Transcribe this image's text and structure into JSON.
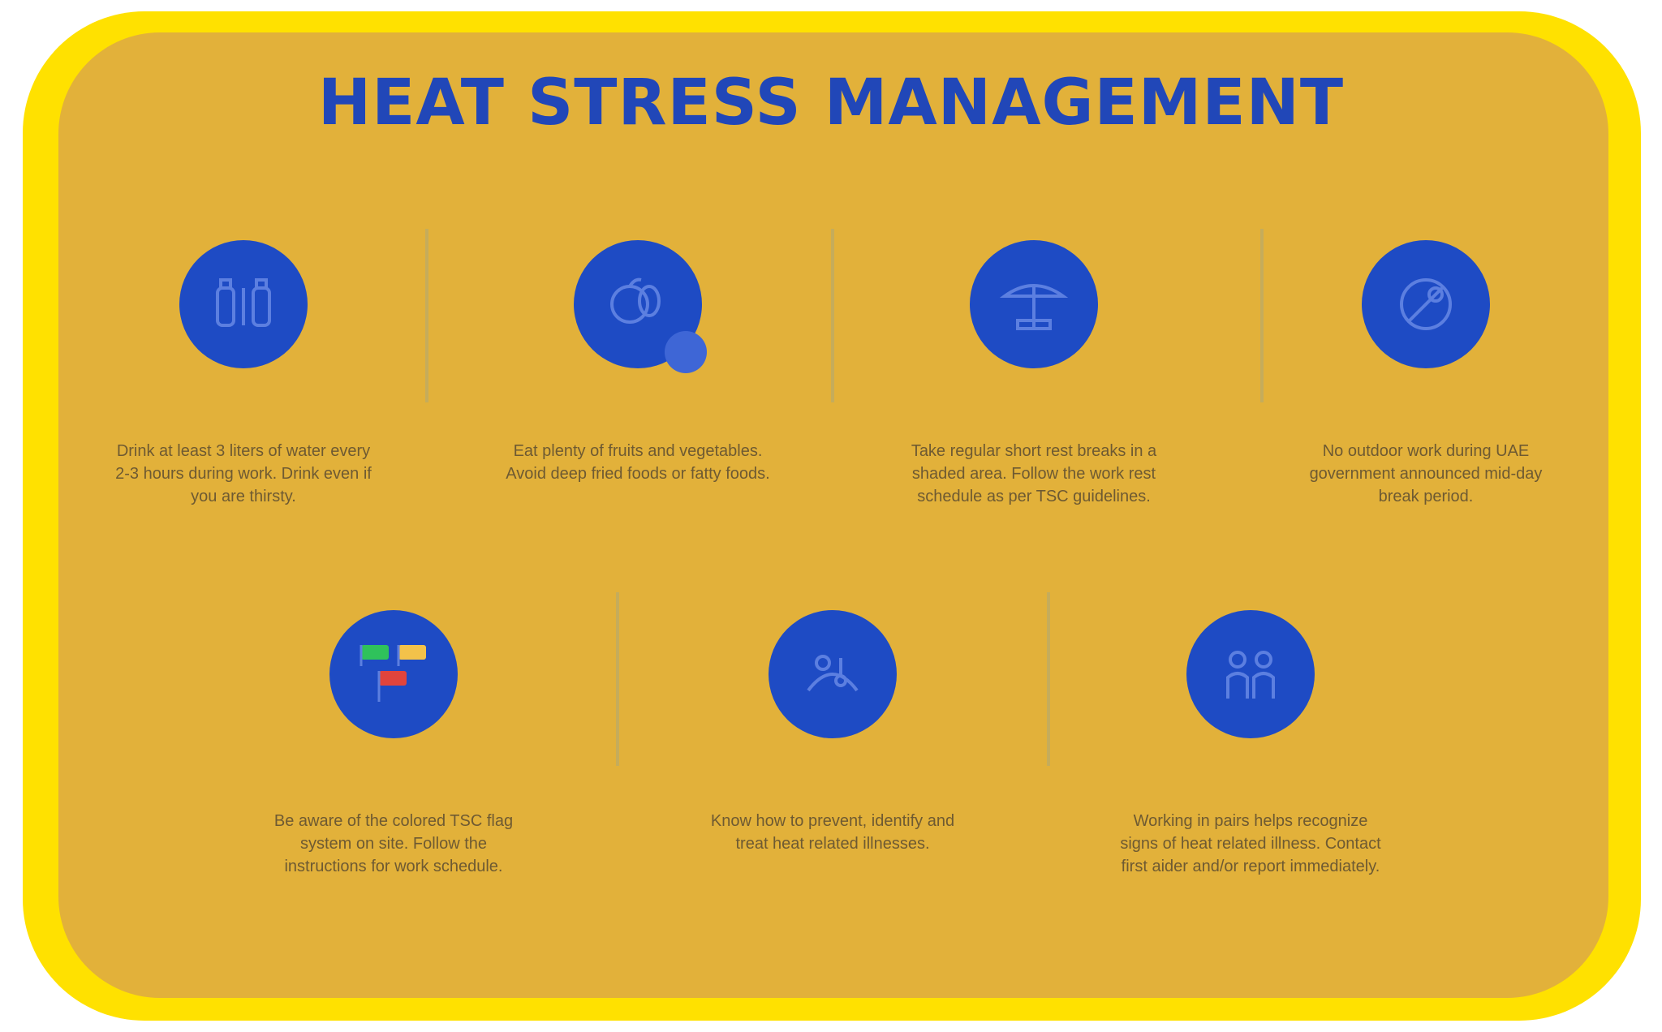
{
  "title": "HEAT STRESS MANAGEMENT",
  "colors": {
    "frame": "#FFE100",
    "panel": "#E2B13A",
    "title": "#2147B8",
    "circle": "#1E4BC4",
    "text": "#6E5A32",
    "divider": "#C5AC5B"
  },
  "row1": [
    {
      "icon": "water-bottle-icon",
      "text": "Drink at least 3 liters of water every 2-3 hours during work. Drink even if you are thirsty."
    },
    {
      "icon": "fruit-vegetable-icon",
      "text": "Eat plenty of fruits and vegetables. Avoid deep fried foods or fatty foods."
    },
    {
      "icon": "rest-break-icon",
      "text": "Take regular short rest breaks in a shaded area. Follow the work rest schedule as per TSC guidelines."
    },
    {
      "icon": "no-outdoor-work-icon",
      "text": "No outdoor work during UAE government announced mid-day break period."
    }
  ],
  "row2": [
    {
      "icon": "flag-system-icon",
      "text": "Be aware of the colored TSC flag system on site. Follow the instructions for work schedule."
    },
    {
      "icon": "cool-body-icon",
      "text": "Know how to prevent, identify and treat heat related illnesses."
    },
    {
      "icon": "buddy-system-icon",
      "text": "Working in pairs helps recognize signs of heat related illness. Contact first aider and/or report immediately."
    }
  ]
}
